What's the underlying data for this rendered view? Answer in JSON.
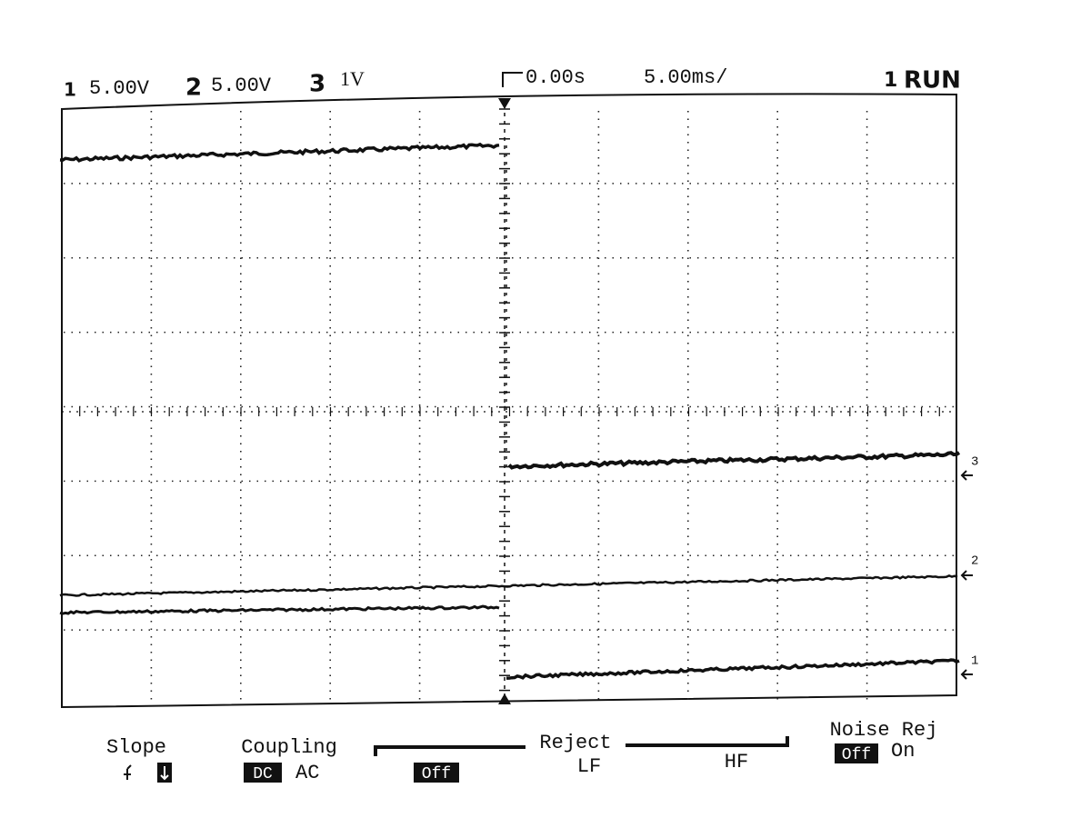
{
  "header": {
    "ch1": {
      "number": "1",
      "scale": "5.00V"
    },
    "ch2": {
      "number": "2",
      "scale": "5.00V"
    },
    "ch3": {
      "number": "3",
      "scale": "1V"
    },
    "delay": "0.00s",
    "timebase": "5.00ms/",
    "trigger_source": "1",
    "run_state": "RUN"
  },
  "markers": [
    "3",
    "2",
    "1"
  ],
  "softkeys": {
    "slope": {
      "label": "Slope"
    },
    "coupling": {
      "label": "Coupling",
      "options": [
        "DC",
        "AC"
      ]
    },
    "reject": {
      "label": "Reject",
      "options": [
        "Off",
        "LF",
        "HF"
      ]
    },
    "noise_rej": {
      "label": "Noise Rej",
      "options": [
        "Off",
        "On"
      ]
    }
  }
}
